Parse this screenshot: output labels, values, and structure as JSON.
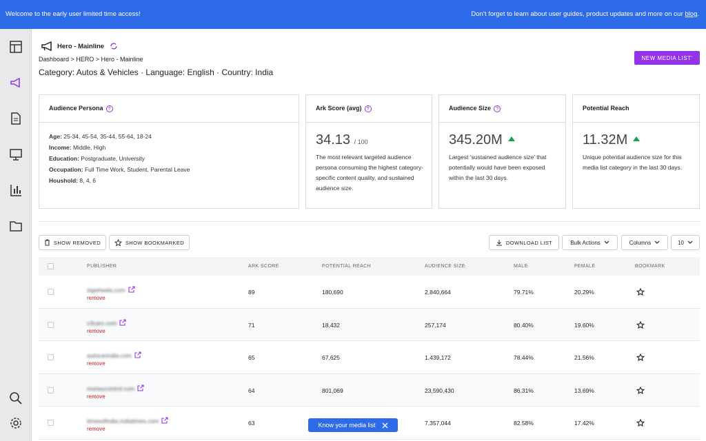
{
  "banner": {
    "welcome": "Welcome to the early user limited time access!",
    "notice": "Don’t forget to learn about user guides, product updates and more on our",
    "link": "blog",
    "end": "."
  },
  "header": {
    "title": "Hero - Mainline",
    "breadcrumb": "Dashboard > HERO > Hero - Mainline",
    "filters": "Category: Autos & Vehicles · Language: English · Country: India",
    "new_list_button": "NEW MEDIA LIST'"
  },
  "cards": [
    {
      "title": "Audience Persona",
      "items": [
        {
          "label": "Age:",
          "value": "25-34, 45-54, 35-44, 55-64, 18-24"
        },
        {
          "label": "Income:",
          "value": "Middle, High"
        },
        {
          "label": "Education:",
          "value": "Postgraduate, University"
        },
        {
          "label": "Occupation:",
          "value": "Full Time Work, Student, Parental Leave"
        },
        {
          "label": "Houshold:",
          "value": "8, 4, 6"
        }
      ]
    },
    {
      "title": "Ark Score (avg)",
      "value": "34.13",
      "suffix": "/ 100",
      "description": "The most relevant targeted audience persona consuming the highest category-specific content quality, and sustained audience size."
    },
    {
      "title": "Audience Size",
      "value": "345.20M",
      "description": "Largest ‘sustained audience size’ that potentially would have been exposed within the last 30 days."
    },
    {
      "title": "Potential Reach",
      "value": "11.32M",
      "description": "Unique potential audience size for this media list category in the last 30 days."
    }
  ],
  "toolbar": {
    "show_removed": "SHOW REMOVED",
    "show_bookmarked": "SHOW BOOKMARKED",
    "download": "DOWNLOAD LIST",
    "bulk_actions": "Bulk Actions",
    "columns": "Columns",
    "page_size": "10"
  },
  "table": {
    "columns": [
      "PUBLISHER",
      "ARK SCORE",
      "POTENTIAL REACH",
      "AUDIENCE SIZE",
      "MALE",
      "FEMALE",
      "BOOKMARK"
    ],
    "rows": [
      {
        "publisher": "zigwheels.com",
        "action": "remove",
        "ark_score": 89,
        "potential_reach": "180,690",
        "audience_size": "2,840,664",
        "male": "79.71%",
        "female": "20.29%"
      },
      {
        "publisher": "v3cars.com",
        "action": "remove",
        "ark_score": 71,
        "potential_reach": "18,432",
        "audience_size": "257,174",
        "male": "80.40%",
        "female": "19.60%"
      },
      {
        "publisher": "autocarindia.com",
        "action": "remove",
        "ark_score": 65,
        "potential_reach": "67,625",
        "audience_size": "1,439,172",
        "male": "78.44%",
        "female": "21.56%"
      },
      {
        "publisher": "moneycontrol.com",
        "action": "remove",
        "ark_score": 64,
        "potential_reach": "801,069",
        "audience_size": "23,590,430",
        "male": "86.31%",
        "female": "13.69%"
      },
      {
        "publisher": "timesofindia.indiatimes.com",
        "action": "remove",
        "ark_score": 63,
        "potential_reach": null,
        "audience_size": "7,357,044",
        "male": "82.58%",
        "female": "17.42%"
      }
    ]
  },
  "toast": {
    "text": "Know your media list"
  }
}
